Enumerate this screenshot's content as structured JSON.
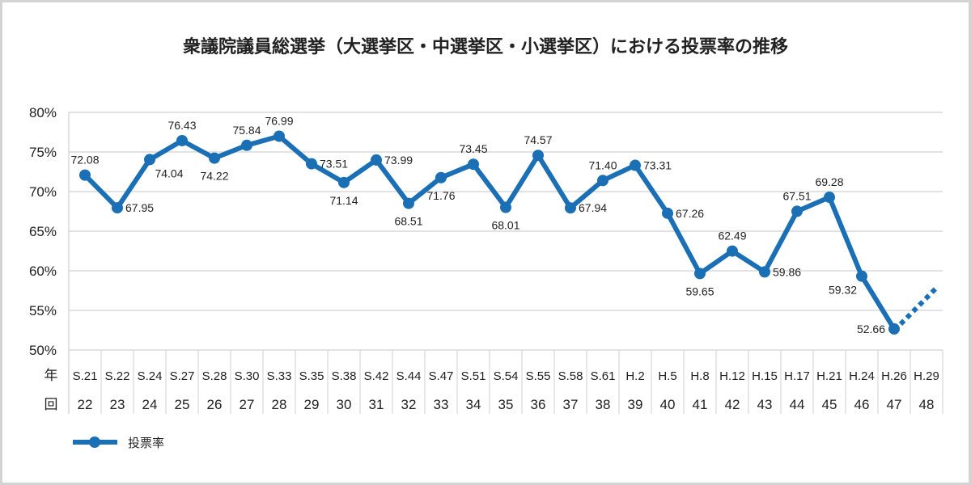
{
  "title": "衆議院議員総選挙（大選挙区・中選挙区・小選挙区）における投票率の推移",
  "colors": {
    "line": "#1a6fb5",
    "grid": "#d9d9d9",
    "border": "#d3d3d3",
    "text": "#222222"
  },
  "table": {
    "row_year_label": "年",
    "row_session_label": "回"
  },
  "legend": {
    "label": "投票率"
  },
  "chart_data": {
    "type": "line",
    "title": "衆議院議員総選挙（大選挙区・中選挙区・小選挙区）における投票率の推移",
    "xlabel": "",
    "ylabel": "",
    "ylim": [
      50,
      80
    ],
    "yticks": [
      "80%",
      "75%",
      "70%",
      "65%",
      "60%",
      "55%",
      "50%"
    ],
    "grid": true,
    "legend_position": "bottom-left",
    "categories": [
      "S.21",
      "S.22",
      "S.24",
      "S.27",
      "S.28",
      "S.30",
      "S.33",
      "S.35",
      "S.38",
      "S.42",
      "S.44",
      "S.47",
      "S.51",
      "S.54",
      "S.55",
      "S.58",
      "S.61",
      "H.2",
      "H.5",
      "H.8",
      "H.12",
      "H.15",
      "H.17",
      "H.21",
      "H.24",
      "H.26",
      "H.29"
    ],
    "sessions": [
      "22",
      "23",
      "24",
      "25",
      "26",
      "27",
      "28",
      "29",
      "30",
      "31",
      "32",
      "33",
      "34",
      "35",
      "36",
      "37",
      "38",
      "39",
      "40",
      "41",
      "42",
      "43",
      "44",
      "45",
      "46",
      "47",
      "48"
    ],
    "series": [
      {
        "name": "投票率",
        "values": [
          72.08,
          67.95,
          74.04,
          76.43,
          74.22,
          75.84,
          76.99,
          73.51,
          71.14,
          73.99,
          68.51,
          71.76,
          73.45,
          68.01,
          74.57,
          67.94,
          71.4,
          73.31,
          67.26,
          59.65,
          62.49,
          59.86,
          67.51,
          69.28,
          59.32,
          52.66,
          null
        ],
        "labels": [
          "72.08",
          "67.95",
          "74.04",
          "76.43",
          "74.22",
          "75.84",
          "76.99",
          "73.51",
          "71.14",
          "73.99",
          "68.51",
          "71.76",
          "73.45",
          "68.01",
          "74.57",
          "67.94",
          "71.40",
          "73.31",
          "67.26",
          "59.65",
          "62.49",
          "59.86",
          "67.51",
          "69.28",
          "59.32",
          "52.66",
          ""
        ],
        "label_pos": [
          "above",
          "right",
          "right-below",
          "above",
          "below",
          "above",
          "above",
          "right",
          "below",
          "right",
          "below",
          "below",
          "above",
          "below",
          "above",
          "right",
          "above",
          "right",
          "right",
          "below",
          "above",
          "right",
          "above",
          "above",
          "left-below",
          "left",
          ""
        ]
      }
    ],
    "projection": {
      "from_index": 25,
      "to_value_approx": 57.9,
      "style": "dotted"
    }
  }
}
